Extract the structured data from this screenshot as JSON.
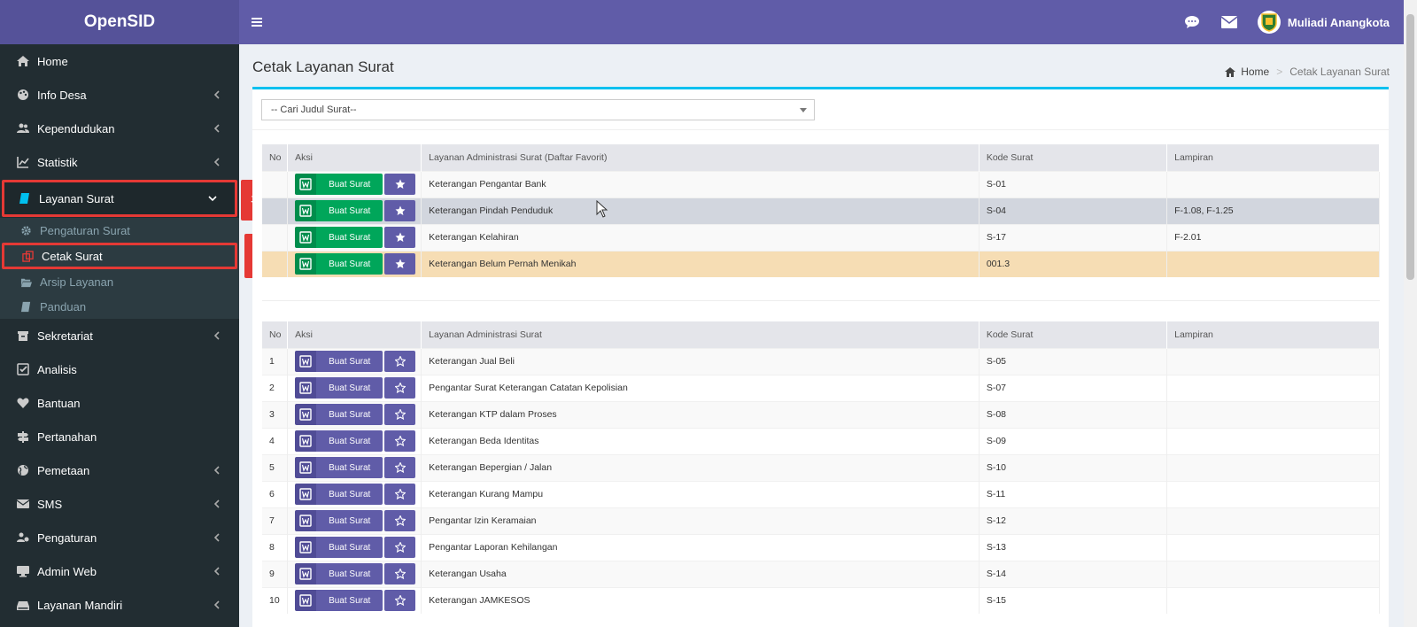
{
  "app": {
    "logo": "OpenSID"
  },
  "colors": {
    "header": "#605ca8",
    "sidebar": "#222d32",
    "accent": "#00c0ef",
    "green": "#00a65a",
    "highlight_mark": "#e53935"
  },
  "sidebar": {
    "items_top": [
      {
        "label": "Home",
        "icon": "home-icon",
        "chevron": false
      },
      {
        "label": "Info Desa",
        "icon": "palette-icon",
        "chevron": true
      },
      {
        "label": "Kependudukan",
        "icon": "users-icon",
        "chevron": true
      },
      {
        "label": "Statistik",
        "icon": "chart-icon",
        "chevron": true
      }
    ],
    "active": {
      "label": "Layanan Surat",
      "icon": "book-icon"
    },
    "submenu": [
      {
        "label": "Pengaturan Surat",
        "icon": "gear-icon"
      },
      {
        "label": "Cetak Surat",
        "icon": "copy-icon",
        "active": true
      },
      {
        "label": "Arsip Layanan",
        "icon": "folder-open-icon"
      },
      {
        "label": "Panduan",
        "icon": "book-icon"
      }
    ],
    "items_bottom": [
      {
        "label": "Sekretariat",
        "icon": "archive-icon",
        "chevron": true
      },
      {
        "label": "Analisis",
        "icon": "check-square-icon",
        "chevron": false
      },
      {
        "label": "Bantuan",
        "icon": "heart-icon",
        "chevron": false
      },
      {
        "label": "Pertanahan",
        "icon": "signpost-icon",
        "chevron": false
      },
      {
        "label": "Pemetaan",
        "icon": "globe-icon",
        "chevron": true
      },
      {
        "label": "SMS",
        "icon": "envelope-icon",
        "chevron": true
      },
      {
        "label": "Pengaturan",
        "icon": "users-cog-icon",
        "chevron": true
      },
      {
        "label": "Admin Web",
        "icon": "desktop-icon",
        "chevron": true
      },
      {
        "label": "Layanan Mandiri",
        "icon": "drive-icon",
        "chevron": true
      }
    ]
  },
  "marks": {
    "m1": "#1",
    "m2": "#2"
  },
  "header": {
    "username": "Muliadi Anangkota"
  },
  "page": {
    "title": "Cetak Layanan Surat",
    "breadcrumb_home": "Home",
    "breadcrumb_current": "Cetak Layanan Surat"
  },
  "search": {
    "placeholder": "-- Cari Judul Surat--"
  },
  "fav_table": {
    "headers": [
      "No",
      "Aksi",
      "Layanan Administrasi Surat (Daftar Favorit)",
      "Kode Surat",
      "Lampiran"
    ],
    "button_label": "Buat Surat",
    "rows": [
      {
        "no": "",
        "name": "Keterangan Pengantar Bank",
        "code": "S-01",
        "lampiran": ""
      },
      {
        "no": "",
        "name": "Keterangan Pindah Penduduk",
        "code": "S-04",
        "lampiran": "F-1.08, F-1.25"
      },
      {
        "no": "",
        "name": "Keterangan Kelahiran",
        "code": "S-17",
        "lampiran": "F-2.01"
      },
      {
        "no": "",
        "name": "Keterangan Belum Pernah Menikah",
        "code": "001.3",
        "lampiran": ""
      }
    ]
  },
  "main_table": {
    "headers": [
      "No",
      "Aksi",
      "Layanan Administrasi Surat",
      "Kode Surat",
      "Lampiran"
    ],
    "button_label": "Buat Surat",
    "rows": [
      {
        "no": "1",
        "name": "Keterangan Jual Beli",
        "code": "S-05",
        "lampiran": ""
      },
      {
        "no": "2",
        "name": "Pengantar Surat Keterangan Catatan Kepolisian",
        "code": "S-07",
        "lampiran": ""
      },
      {
        "no": "3",
        "name": "Keterangan KTP dalam Proses",
        "code": "S-08",
        "lampiran": ""
      },
      {
        "no": "4",
        "name": "Keterangan Beda Identitas",
        "code": "S-09",
        "lampiran": ""
      },
      {
        "no": "5",
        "name": "Keterangan Bepergian / Jalan",
        "code": "S-10",
        "lampiran": ""
      },
      {
        "no": "6",
        "name": "Keterangan Kurang Mampu",
        "code": "S-11",
        "lampiran": ""
      },
      {
        "no": "7",
        "name": "Pengantar Izin Keramaian",
        "code": "S-12",
        "lampiran": ""
      },
      {
        "no": "8",
        "name": "Pengantar Laporan Kehilangan",
        "code": "S-13",
        "lampiran": ""
      },
      {
        "no": "9",
        "name": "Keterangan Usaha",
        "code": "S-14",
        "lampiran": ""
      },
      {
        "no": "10",
        "name": "Keterangan JAMKESOS",
        "code": "S-15",
        "lampiran": ""
      }
    ]
  }
}
